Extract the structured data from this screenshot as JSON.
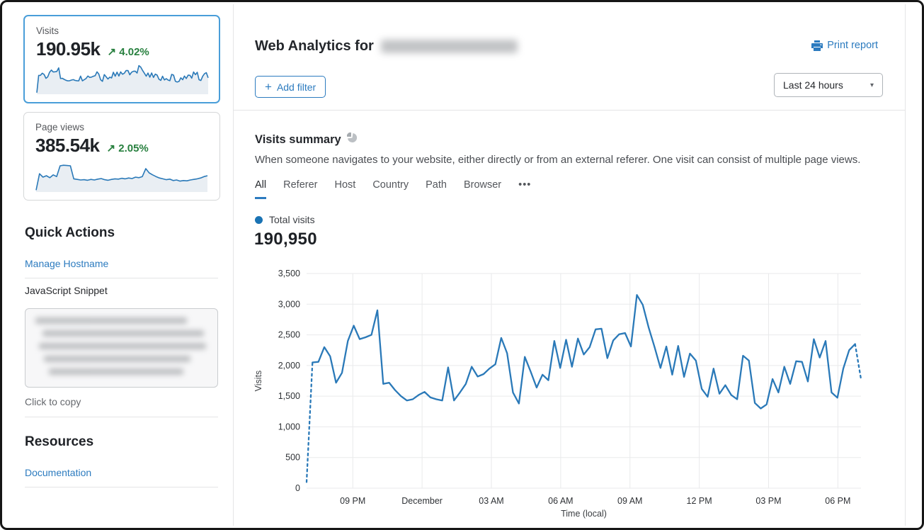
{
  "colors": {
    "accent_blue": "#2c7bbf",
    "chart_blue": "#2a79b8",
    "green": "#28803f",
    "selected_border": "#4a9ed9",
    "grid": "#e9eaeb"
  },
  "sidebar": {
    "metric_cards": [
      {
        "label": "Visits",
        "value": "190.95k",
        "delta_arrow": "↗",
        "delta": "4.02%",
        "selected": true
      },
      {
        "label": "Page views",
        "value": "385.54k",
        "delta_arrow": "↗",
        "delta": "2.05%",
        "selected": false
      }
    ],
    "quick_actions": {
      "title": "Quick Actions",
      "manage_link": "Manage Hostname",
      "snippet_label": "JavaScript Snippet",
      "copy_hint": "Click to copy"
    },
    "resources": {
      "title": "Resources",
      "doc_link": "Documentation"
    }
  },
  "header": {
    "title_prefix": "Web Analytics for",
    "print_label": "Print report",
    "add_filter_plus": "+",
    "add_filter_label": "Add filter",
    "time_range_value": "Last 24 hours",
    "caret": "▾"
  },
  "summary": {
    "title": "Visits summary",
    "description": "When someone navigates to your website, either directly or from an external referer. One visit can consist of multiple page views.",
    "tabs": [
      "All",
      "Referer",
      "Host",
      "Country",
      "Path",
      "Browser"
    ],
    "more_tab": "•••",
    "active_tab": "All",
    "legend_label": "Total visits",
    "total": "190,950"
  },
  "chart_data": {
    "type": "line",
    "series_name": "Total visits",
    "xlabel": "Time (local)",
    "ylabel": "Visits",
    "ylim": [
      0,
      3500
    ],
    "grid": true,
    "legend_position": "top-left",
    "y_ticks": [
      {
        "value": 0,
        "label": "0"
      },
      {
        "value": 500,
        "label": "500"
      },
      {
        "value": 1000,
        "label": "1,000"
      },
      {
        "value": 1500,
        "label": "1,500"
      },
      {
        "value": 2000,
        "label": "2,000"
      },
      {
        "value": 2500,
        "label": "2,500"
      },
      {
        "value": 3000,
        "label": "3,000"
      },
      {
        "value": 3500,
        "label": "3,500"
      }
    ],
    "x_span_hours": 24,
    "x_ticks": [
      {
        "label": "09 PM",
        "hour": 2
      },
      {
        "label": "December",
        "hour": 5
      },
      {
        "label": "03 AM",
        "hour": 8
      },
      {
        "label": "06 AM",
        "hour": 11
      },
      {
        "label": "09 AM",
        "hour": 14
      },
      {
        "label": "12 PM",
        "hour": 17
      },
      {
        "label": "03 PM",
        "hour": 20
      },
      {
        "label": "06 PM",
        "hour": 23
      }
    ],
    "dashed_head_points": 2,
    "dashed_tail_points": 2,
    "values": [
      100,
      2050,
      2060,
      2300,
      2150,
      1720,
      1880,
      2400,
      2650,
      2430,
      2460,
      2500,
      2900,
      1700,
      1720,
      1600,
      1500,
      1430,
      1450,
      1520,
      1570,
      1480,
      1450,
      1430,
      1970,
      1430,
      1560,
      1700,
      1980,
      1820,
      1860,
      1950,
      2020,
      2450,
      2200,
      1560,
      1380,
      2140,
      1900,
      1640,
      1850,
      1760,
      2400,
      1960,
      2420,
      1980,
      2440,
      2180,
      2300,
      2590,
      2600,
      2120,
      2410,
      2510,
      2530,
      2310,
      3150,
      2990,
      2620,
      2300,
      1960,
      2310,
      1850,
      2320,
      1815,
      2195,
      2080,
      1620,
      1490,
      1950,
      1540,
      1680,
      1520,
      1450,
      2160,
      2080,
      1390,
      1300,
      1365,
      1780,
      1560,
      1980,
      1700,
      2070,
      2060,
      1740,
      2430,
      2130,
      2400,
      1560,
      1475,
      1950,
      2250,
      2350,
      1780
    ]
  },
  "sparklines": {
    "pageviews": [
      4,
      62,
      50,
      55,
      48,
      58,
      52,
      90,
      92,
      91,
      90,
      44,
      42,
      40,
      41,
      39,
      42,
      40,
      43,
      45,
      41,
      39,
      42,
      44,
      43,
      46,
      44,
      47,
      45,
      50,
      48,
      52,
      80,
      65,
      58,
      52,
      47,
      44,
      41,
      43,
      38,
      40,
      36,
      38,
      37,
      40,
      42,
      44,
      47,
      52,
      55
    ]
  }
}
